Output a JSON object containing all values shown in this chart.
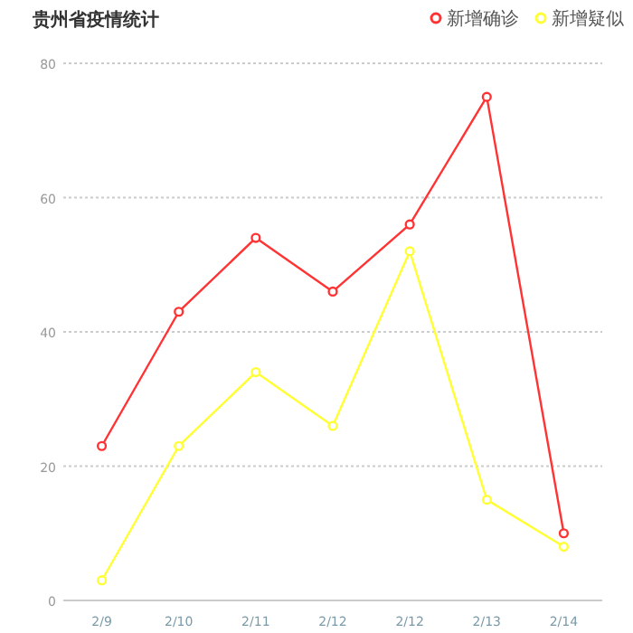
{
  "chart_data": {
    "type": "line",
    "title": "贵州省疫情统计",
    "categories": [
      "2/9",
      "2/10",
      "2/11",
      "2/12",
      "2/12",
      "2/13",
      "2/14"
    ],
    "series": [
      {
        "name": "新增确诊",
        "color": "#ff3333",
        "values": [
          23,
          43,
          54,
          46,
          56,
          75,
          10
        ]
      },
      {
        "name": "新增疑似",
        "color": "#ffff33",
        "values": [
          3,
          23,
          34,
          26,
          52,
          15,
          8
        ]
      }
    ],
    "ylim": [
      0,
      80
    ],
    "yticks": [
      0,
      20,
      40,
      60,
      80
    ],
    "grid": "y",
    "legend": "top right",
    "marker": "circle"
  }
}
